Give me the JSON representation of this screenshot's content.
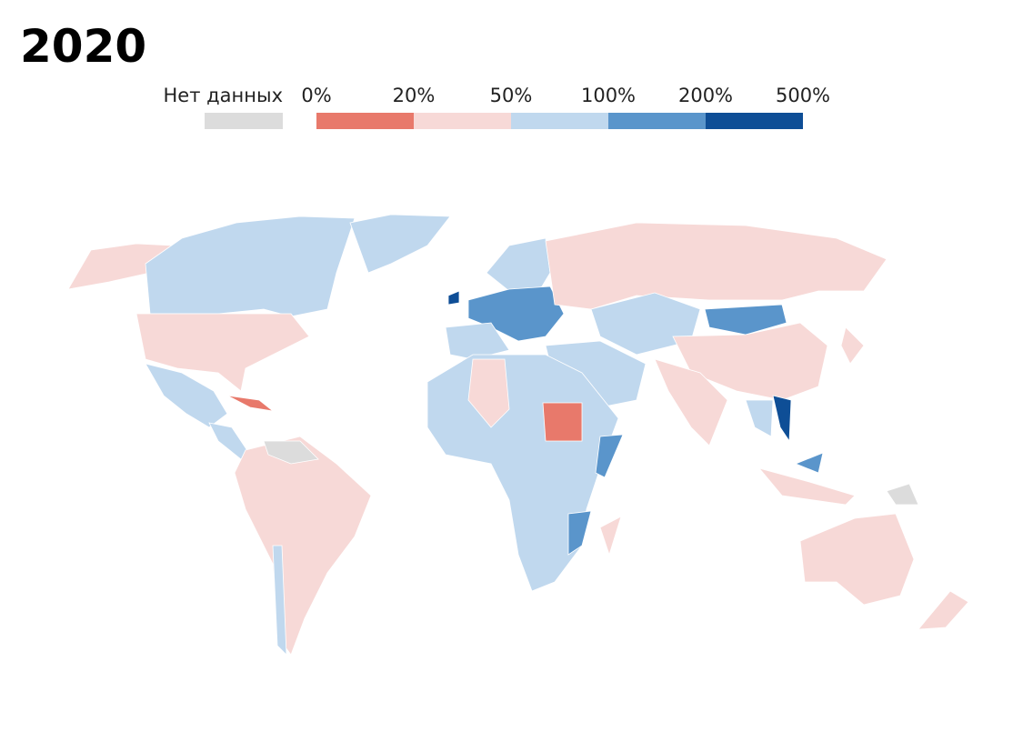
{
  "title": "2020",
  "legend": {
    "no_data": {
      "label": "Нет данных",
      "color": "#dcdcdc"
    },
    "ticks": [
      "0%",
      "20%",
      "50%",
      "100%",
      "200%",
      "500%"
    ],
    "colors": [
      "#e8796b",
      "#f7d9d7",
      "#c0d8ee",
      "#5a95cb",
      "#0e4e96"
    ]
  }
}
